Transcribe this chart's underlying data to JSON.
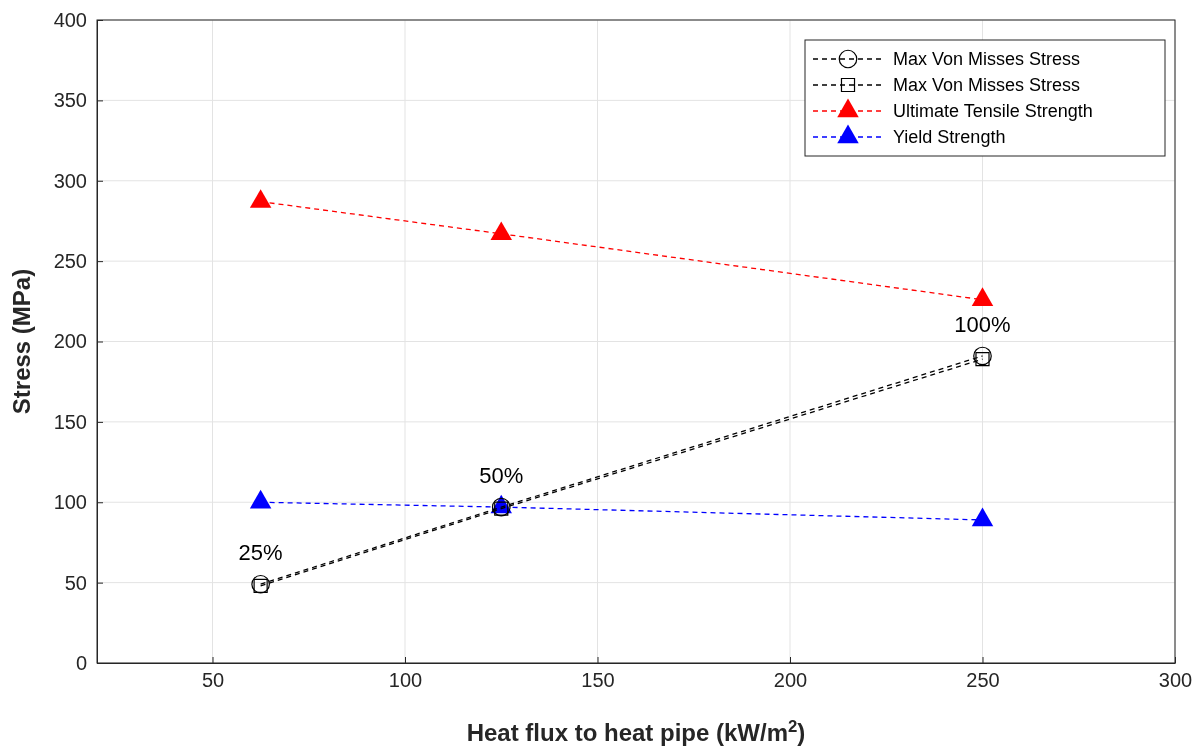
{
  "chart_data": {
    "type": "line",
    "xlabel": "Heat flux to heat pipe (kW/m$^{2}$)",
    "ylabel": "Stress (MPa)",
    "x": [
      62.5,
      125,
      250
    ],
    "xlim": [
      20,
      300
    ],
    "xticks": [
      50,
      100,
      150,
      200,
      250,
      300
    ],
    "ylim": [
      0,
      400
    ],
    "yticks": [
      0,
      50,
      100,
      150,
      200,
      250,
      300,
      350,
      400
    ],
    "grid": true,
    "legend": "top right",
    "line_style": "dashed",
    "series": [
      {
        "name": "Max Von Misses Stress",
        "color": "#000000",
        "marker": "circle",
        "values": [
          49,
          97,
          191
        ]
      },
      {
        "name": "Max Von Misses Stress",
        "color": "#000000",
        "marker": "square",
        "values": [
          48,
          96,
          189
        ]
      },
      {
        "name": "Ultimate Tensile Strength",
        "color": "#ff0000",
        "marker": "triangle",
        "values": [
          287,
          267,
          226
        ]
      },
      {
        "name": "Yield Strength",
        "color": "#0000ff",
        "marker": "triangle",
        "values": [
          100,
          97,
          89
        ]
      }
    ],
    "annotations": [
      {
        "text": "25%",
        "x": 62.5,
        "y": 49
      },
      {
        "text": "50%",
        "x": 125,
        "y": 97
      },
      {
        "text": "100%",
        "x": 250,
        "y": 191
      }
    ]
  }
}
